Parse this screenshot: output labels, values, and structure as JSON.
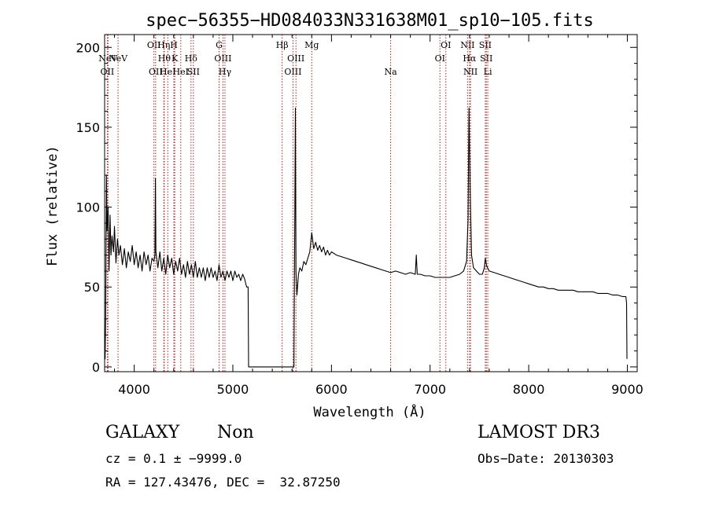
{
  "chart_data": {
    "type": "line",
    "title": "spec−56355−HD084033N331638M01_sp10−105.fits",
    "xlabel": "Wavelength (Å)",
    "ylabel": "Flux (relative)",
    "xlim": [
      3700,
      9100
    ],
    "ylim": [
      -3,
      208
    ],
    "xticks": [
      4000,
      5000,
      6000,
      7000,
      8000,
      9000
    ],
    "yticks": [
      0,
      50,
      100,
      150,
      200
    ],
    "grid": false,
    "legend": "none",
    "line_color": "#000000",
    "marker_color": "#b22222",
    "series": [
      {
        "points": [
          [
            3700,
            20
          ],
          [
            3705,
            5
          ],
          [
            3710,
            30
          ],
          [
            3718,
            120
          ],
          [
            3725,
            85
          ],
          [
            3735,
            100
          ],
          [
            3745,
            60
          ],
          [
            3755,
            95
          ],
          [
            3765,
            70
          ],
          [
            3775,
            82
          ],
          [
            3790,
            72
          ],
          [
            3800,
            88
          ],
          [
            3815,
            65
          ],
          [
            3830,
            80
          ],
          [
            3845,
            70
          ],
          [
            3860,
            76
          ],
          [
            3880,
            64
          ],
          [
            3900,
            74
          ],
          [
            3920,
            62
          ],
          [
            3940,
            72
          ],
          [
            3960,
            66
          ],
          [
            3980,
            76
          ],
          [
            4000,
            64
          ],
          [
            4020,
            72
          ],
          [
            4040,
            62
          ],
          [
            4060,
            70
          ],
          [
            4080,
            60
          ],
          [
            4100,
            72
          ],
          [
            4120,
            64
          ],
          [
            4140,
            70
          ],
          [
            4160,
            60
          ],
          [
            4180,
            68
          ],
          [
            4200,
            66
          ],
          [
            4210,
            70
          ],
          [
            4215,
            118
          ],
          [
            4220,
            72
          ],
          [
            4240,
            62
          ],
          [
            4260,
            72
          ],
          [
            4280,
            60
          ],
          [
            4300,
            68
          ],
          [
            4320,
            58
          ],
          [
            4340,
            70
          ],
          [
            4360,
            62
          ],
          [
            4380,
            68
          ],
          [
            4400,
            58
          ],
          [
            4420,
            66
          ],
          [
            4440,
            60
          ],
          [
            4460,
            68
          ],
          [
            4480,
            58
          ],
          [
            4500,
            64
          ],
          [
            4520,
            56
          ],
          [
            4540,
            66
          ],
          [
            4560,
            58
          ],
          [
            4580,
            64
          ],
          [
            4600,
            56
          ],
          [
            4620,
            66
          ],
          [
            4640,
            56
          ],
          [
            4660,
            62
          ],
          [
            4680,
            56
          ],
          [
            4700,
            62
          ],
          [
            4720,
            54
          ],
          [
            4740,
            62
          ],
          [
            4760,
            56
          ],
          [
            4780,
            62
          ],
          [
            4800,
            56
          ],
          [
            4820,
            60
          ],
          [
            4840,
            54
          ],
          [
            4860,
            64
          ],
          [
            4880,
            56
          ],
          [
            4900,
            60
          ],
          [
            4920,
            54
          ],
          [
            4940,
            60
          ],
          [
            4960,
            56
          ],
          [
            4980,
            60
          ],
          [
            5000,
            54
          ],
          [
            5020,
            60
          ],
          [
            5040,
            56
          ],
          [
            5060,
            58
          ],
          [
            5080,
            54
          ],
          [
            5100,
            58
          ],
          [
            5120,
            55
          ],
          [
            5140,
            50
          ],
          [
            5155,
            50
          ],
          [
            5160,
            0
          ],
          [
            5620,
            0
          ],
          [
            5622,
            30
          ],
          [
            5628,
            90
          ],
          [
            5634,
            162
          ],
          [
            5640,
            60
          ],
          [
            5650,
            45
          ],
          [
            5665,
            58
          ],
          [
            5680,
            62
          ],
          [
            5700,
            60
          ],
          [
            5720,
            66
          ],
          [
            5740,
            64
          ],
          [
            5760,
            68
          ],
          [
            5780,
            72
          ],
          [
            5800,
            84
          ],
          [
            5820,
            74
          ],
          [
            5840,
            78
          ],
          [
            5860,
            73
          ],
          [
            5880,
            76
          ],
          [
            5900,
            72
          ],
          [
            5920,
            75
          ],
          [
            5940,
            70
          ],
          [
            5960,
            73
          ],
          [
            5980,
            70
          ],
          [
            6000,
            72
          ],
          [
            6050,
            70
          ],
          [
            6100,
            69
          ],
          [
            6150,
            68
          ],
          [
            6200,
            67
          ],
          [
            6250,
            66
          ],
          [
            6300,
            65
          ],
          [
            6350,
            64
          ],
          [
            6400,
            63
          ],
          [
            6450,
            62
          ],
          [
            6500,
            61
          ],
          [
            6550,
            60
          ],
          [
            6600,
            59
          ],
          [
            6650,
            60
          ],
          [
            6700,
            59
          ],
          [
            6750,
            58
          ],
          [
            6800,
            59
          ],
          [
            6850,
            58
          ],
          [
            6860,
            70
          ],
          [
            6870,
            58
          ],
          [
            6900,
            58
          ],
          [
            6950,
            57
          ],
          [
            7000,
            57
          ],
          [
            7050,
            56
          ],
          [
            7100,
            56
          ],
          [
            7150,
            56
          ],
          [
            7200,
            56
          ],
          [
            7250,
            57
          ],
          [
            7300,
            58
          ],
          [
            7340,
            60
          ],
          [
            7370,
            66
          ],
          [
            7385,
            92
          ],
          [
            7395,
            162
          ],
          [
            7405,
            115
          ],
          [
            7420,
            70
          ],
          [
            7440,
            62
          ],
          [
            7470,
            60
          ],
          [
            7500,
            58
          ],
          [
            7530,
            58
          ],
          [
            7550,
            62
          ],
          [
            7560,
            68
          ],
          [
            7575,
            63
          ],
          [
            7600,
            60
          ],
          [
            7650,
            59
          ],
          [
            7700,
            58
          ],
          [
            7750,
            57
          ],
          [
            7800,
            56
          ],
          [
            7850,
            55
          ],
          [
            7900,
            54
          ],
          [
            7950,
            53
          ],
          [
            8000,
            52
          ],
          [
            8050,
            51
          ],
          [
            8100,
            50
          ],
          [
            8150,
            50
          ],
          [
            8200,
            49
          ],
          [
            8250,
            49
          ],
          [
            8300,
            48
          ],
          [
            8350,
            48
          ],
          [
            8400,
            48
          ],
          [
            8450,
            48
          ],
          [
            8500,
            47
          ],
          [
            8550,
            47
          ],
          [
            8600,
            47
          ],
          [
            8650,
            47
          ],
          [
            8700,
            46
          ],
          [
            8750,
            46
          ],
          [
            8800,
            46
          ],
          [
            8850,
            45
          ],
          [
            8900,
            45
          ],
          [
            8950,
            44
          ],
          [
            8985,
            44
          ],
          [
            8992,
            40
          ],
          [
            8996,
            5
          ]
        ]
      }
    ],
    "markers": [
      {
        "x": 3727,
        "label": "OII",
        "row": 4
      },
      {
        "x": 3734,
        "label": "NeV",
        "row": 3
      },
      {
        "x": 3836,
        "label": "NeV",
        "row": 2
      },
      {
        "x": 4200,
        "label": "OII",
        "row": 1
      },
      {
        "x": 4217,
        "label": "OII",
        "row": 4
      },
      {
        "x": 4300,
        "label": "Hη",
        "row": 1
      },
      {
        "x": 4305,
        "label": "Hθ",
        "row": 2
      },
      {
        "x": 4340,
        "label": "HeI",
        "row": 4
      },
      {
        "x": 4402,
        "label": "H",
        "row": 1
      },
      {
        "x": 4411,
        "label": "K",
        "row": 2
      },
      {
        "x": 4472,
        "label": "HeI",
        "row": 4
      },
      {
        "x": 4576,
        "label": "Hδ",
        "row": 2
      },
      {
        "x": 4600,
        "label": "SII",
        "row": 4
      },
      {
        "x": 4861,
        "label": "G",
        "row": 1
      },
      {
        "x": 4900,
        "label": "OIII",
        "row": 2
      },
      {
        "x": 4920,
        "label": "Hγ",
        "row": 4
      },
      {
        "x": 5500,
        "label": "Hβ",
        "row": 1
      },
      {
        "x": 5610,
        "label": "OIII",
        "row": 4
      },
      {
        "x": 5640,
        "label": "OIII",
        "row": 2
      },
      {
        "x": 5800,
        "label": "Mg",
        "row": 1
      },
      {
        "x": 6600,
        "label": "Na",
        "row": 4
      },
      {
        "x": 7100,
        "label": "OI",
        "row": 3
      },
      {
        "x": 7160,
        "label": "OI",
        "row": 1
      },
      {
        "x": 7380,
        "label": "NII",
        "row": 1
      },
      {
        "x": 7400,
        "label": "Hα",
        "row": 2
      },
      {
        "x": 7410,
        "label": "NII",
        "row": 4
      },
      {
        "x": 7560,
        "label": "SII",
        "row": 1
      },
      {
        "x": 7570,
        "label": "SII",
        "row": 2
      },
      {
        "x": 7585,
        "label": "Li",
        "row": 4
      }
    ]
  },
  "footer": {
    "object_class": "GALAXY",
    "subclass": "Non",
    "survey": "LAMOST DR3",
    "cz": "cz = 0.1 ± −9999.0",
    "obs_date": "Obs−Date: 20130303",
    "radec": "RA = 127.43476, DEC =  32.87250"
  }
}
